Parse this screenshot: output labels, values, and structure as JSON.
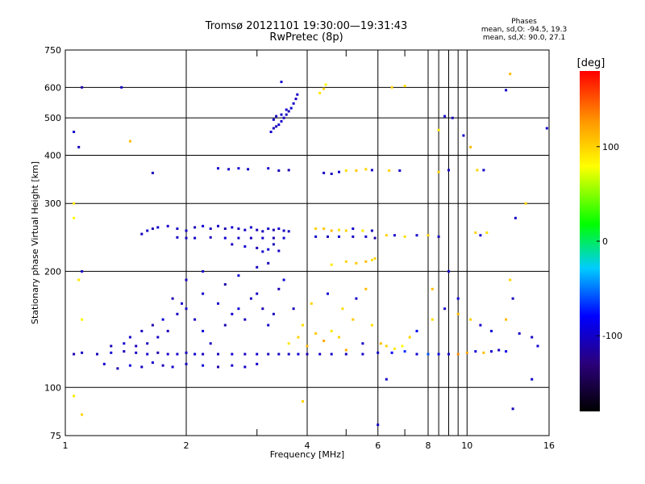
{
  "chart_data": {
    "type": "scatter",
    "title": "Tromsø 20121101 19:30:00—19:31:43",
    "subtitle": "RwPretec (8p)",
    "phases": {
      "heading": "Phases",
      "line1": "mean, sd,O:  -94.5, 19.3",
      "line2": "mean, sd,X:  90.0, 27.1"
    },
    "xlabel": "Frequency [MHz]",
    "ylabel": "Stationary phase Virtual Height [km]",
    "x_scale": "log",
    "y_scale": "log",
    "xlim": [
      1,
      16
    ],
    "ylim": [
      75,
      750
    ],
    "x_ticks": [
      1,
      2,
      4,
      6,
      8,
      10,
      16
    ],
    "x_tick_labels": [
      "1",
      "2",
      "4",
      "6",
      "8",
      "10",
      "16"
    ],
    "x_minor_ticks": [
      3,
      5,
      7,
      9
    ],
    "y_ticks": [
      75,
      100,
      200,
      300,
      400,
      500,
      600,
      750
    ],
    "y_tick_labels": [
      "75",
      "100",
      "200",
      "300",
      "400",
      "500",
      "600",
      "750"
    ],
    "grid": true,
    "colorbar": {
      "unit": "[deg]",
      "range": [
        -180,
        180
      ],
      "ticks": [
        100,
        0,
        -100
      ],
      "tick_labels": [
        "100",
        "0",
        "-100"
      ]
    },
    "points": [
      [
        1.05,
        122,
        -110
      ],
      [
        1.1,
        123,
        -100
      ],
      [
        1.2,
        122,
        -105
      ],
      [
        1.3,
        123,
        -95
      ],
      [
        1.4,
        124,
        -108
      ],
      [
        1.5,
        123,
        -102
      ],
      [
        1.6,
        122,
        -99
      ],
      [
        1.7,
        123,
        -110
      ],
      [
        1.8,
        122,
        -104
      ],
      [
        1.9,
        122,
        -100
      ],
      [
        2.0,
        123,
        -105
      ],
      [
        2.1,
        122,
        -96
      ],
      [
        2.2,
        122,
        -103
      ],
      [
        2.4,
        122,
        -107
      ],
      [
        2.6,
        122,
        -100
      ],
      [
        2.8,
        122,
        -104
      ],
      [
        3.0,
        122,
        -98
      ],
      [
        3.2,
        122,
        -106
      ],
      [
        3.4,
        122,
        -102
      ],
      [
        3.6,
        122,
        -100
      ],
      [
        3.8,
        122,
        -96
      ],
      [
        4.0,
        122,
        -108
      ],
      [
        4.3,
        122,
        -102
      ],
      [
        4.6,
        122,
        -99
      ],
      [
        5.0,
        122,
        -105
      ],
      [
        5.5,
        122,
        -101
      ],
      [
        6.0,
        123,
        -100
      ],
      [
        6.5,
        123,
        -80
      ],
      [
        7.0,
        124,
        -70
      ],
      [
        7.5,
        122,
        -95
      ],
      [
        8.0,
        122,
        -60
      ],
      [
        8.5,
        122,
        -90
      ],
      [
        9.0,
        122,
        -100
      ],
      [
        9.5,
        122,
        130
      ],
      [
        10.0,
        123,
        120
      ],
      [
        10.5,
        124,
        -95
      ],
      [
        11.0,
        123,
        110
      ],
      [
        11.5,
        124,
        -100
      ],
      [
        12.0,
        125,
        -105
      ],
      [
        12.5,
        124,
        -90
      ],
      [
        1.25,
        115,
        -100
      ],
      [
        1.35,
        112,
        -110
      ],
      [
        1.45,
        114,
        -95
      ],
      [
        1.55,
        113,
        -105
      ],
      [
        1.65,
        116,
        -100
      ],
      [
        1.75,
        114,
        -108
      ],
      [
        1.85,
        113,
        -99
      ],
      [
        2.0,
        115,
        -104
      ],
      [
        2.2,
        114,
        -96
      ],
      [
        2.4,
        113,
        -110
      ],
      [
        2.6,
        114,
        -102
      ],
      [
        2.8,
        113,
        -100
      ],
      [
        3.0,
        115,
        -98
      ],
      [
        1.6,
        130,
        -105
      ],
      [
        1.7,
        135,
        -100
      ],
      [
        1.8,
        140,
        -108
      ],
      [
        1.75,
        150,
        -95
      ],
      [
        1.65,
        145,
        -110
      ],
      [
        1.9,
        155,
        -102
      ],
      [
        2.0,
        160,
        -100
      ],
      [
        2.1,
        150,
        -105
      ],
      [
        2.2,
        140,
        -96
      ],
      [
        1.85,
        170,
        -110
      ],
      [
        1.95,
        165,
        -99
      ],
      [
        1.55,
        140,
        -104
      ],
      [
        1.45,
        135,
        -100
      ],
      [
        1.5,
        128,
        -105
      ],
      [
        2.3,
        130,
        -102
      ],
      [
        2.5,
        145,
        -108
      ],
      [
        2.6,
        155,
        -100
      ],
      [
        2.7,
        160,
        -95
      ],
      [
        2.8,
        150,
        -106
      ],
      [
        2.9,
        170,
        -104
      ],
      [
        3.0,
        175,
        -100
      ],
      [
        3.1,
        160,
        -110
      ],
      [
        3.2,
        145,
        -98
      ],
      [
        3.3,
        155,
        -105
      ],
      [
        2.4,
        165,
        -102
      ],
      [
        2.2,
        175,
        -100
      ],
      [
        3.5,
        190,
        -96
      ],
      [
        3.4,
        180,
        -108
      ],
      [
        1.4,
        130,
        -100
      ],
      [
        1.3,
        128,
        -105
      ],
      [
        2.0,
        190,
        -104
      ],
      [
        2.2,
        200,
        -100
      ],
      [
        2.5,
        185,
        -110
      ],
      [
        2.7,
        195,
        -96
      ],
      [
        3.0,
        205,
        -102
      ],
      [
        3.2,
        210,
        -105
      ],
      [
        3.1,
        225,
        -100
      ],
      [
        3.3,
        235,
        -108
      ],
      [
        3.6,
        130,
        90
      ],
      [
        3.8,
        135,
        100
      ],
      [
        4.0,
        128,
        110
      ],
      [
        3.9,
        145,
        95
      ],
      [
        4.2,
        138,
        105
      ],
      [
        4.4,
        132,
        120
      ],
      [
        4.6,
        140,
        90
      ],
      [
        4.8,
        135,
        100
      ],
      [
        5.0,
        125,
        115
      ],
      [
        5.2,
        150,
        105
      ],
      [
        5.5,
        130,
        -100
      ],
      [
        5.8,
        145,
        95
      ],
      [
        3.7,
        160,
        -105
      ],
      [
        4.1,
        165,
        100
      ],
      [
        4.5,
        175,
        -98
      ],
      [
        4.9,
        160,
        95
      ],
      [
        5.3,
        170,
        -100
      ],
      [
        5.6,
        180,
        110
      ],
      [
        6.1,
        130,
        110
      ],
      [
        6.3,
        128,
        100
      ],
      [
        6.6,
        126,
        90
      ],
      [
        6.9,
        128,
        80
      ],
      [
        7.2,
        135,
        100
      ],
      [
        7.5,
        140,
        -80
      ],
      [
        8.2,
        150,
        95
      ],
      [
        8.8,
        160,
        -100
      ],
      [
        9.5,
        155,
        110
      ],
      [
        10.2,
        150,
        100
      ],
      [
        10.8,
        145,
        -100
      ],
      [
        11.5,
        140,
        -95
      ],
      [
        12.5,
        150,
        110
      ],
      [
        13.5,
        138,
        -100
      ],
      [
        14.5,
        135,
        -105
      ],
      [
        15.0,
        128,
        -95
      ],
      [
        1.55,
        250,
        -105
      ],
      [
        1.6,
        255,
        -100
      ],
      [
        1.65,
        258,
        -110
      ],
      [
        1.7,
        260,
        -96
      ],
      [
        1.8,
        262,
        -102
      ],
      [
        1.9,
        258,
        -105
      ],
      [
        2.0,
        255,
        -100
      ],
      [
        2.1,
        260,
        -108
      ],
      [
        2.2,
        262,
        -96
      ],
      [
        2.3,
        258,
        -104
      ],
      [
        2.4,
        262,
        -100
      ],
      [
        2.5,
        258,
        -110
      ],
      [
        2.6,
        260,
        -98
      ],
      [
        2.7,
        258,
        -105
      ],
      [
        2.8,
        256,
        -102
      ],
      [
        2.9,
        260,
        -100
      ],
      [
        3.0,
        256,
        -106
      ],
      [
        3.1,
        254,
        -104
      ],
      [
        3.2,
        258,
        -100
      ],
      [
        3.3,
        256,
        -110
      ],
      [
        3.4,
        258,
        -98
      ],
      [
        3.5,
        255,
        -105
      ],
      [
        3.6,
        254,
        -102
      ],
      [
        1.9,
        245,
        -100
      ],
      [
        2.0,
        244,
        -105
      ],
      [
        2.1,
        244,
        -100
      ],
      [
        2.3,
        245,
        -108
      ],
      [
        2.5,
        244,
        -96
      ],
      [
        2.7,
        244,
        -102
      ],
      [
        2.9,
        244,
        -105
      ],
      [
        3.1,
        244,
        -100
      ],
      [
        3.3,
        244,
        -110
      ],
      [
        3.5,
        244,
        -98
      ],
      [
        2.6,
        235,
        -105
      ],
      [
        2.8,
        232,
        -100
      ],
      [
        3.0,
        230,
        -108
      ],
      [
        3.2,
        228,
        -96
      ],
      [
        3.4,
        226,
        -102
      ],
      [
        4.2,
        258,
        100
      ],
      [
        4.4,
        258,
        105
      ],
      [
        4.6,
        255,
        110
      ],
      [
        4.8,
        256,
        95
      ],
      [
        5.0,
        255,
        100
      ],
      [
        5.2,
        258,
        -100
      ],
      [
        5.5,
        255,
        90
      ],
      [
        5.8,
        255,
        -105
      ],
      [
        6.3,
        248,
        100
      ],
      [
        6.6,
        248,
        -100
      ],
      [
        7.0,
        246,
        95
      ],
      [
        7.5,
        248,
        -98
      ],
      [
        8.0,
        248,
        100
      ],
      [
        8.5,
        246,
        -105
      ],
      [
        10.5,
        252,
        100
      ],
      [
        10.8,
        248,
        -100
      ],
      [
        11.2,
        252,
        95
      ],
      [
        4.2,
        246,
        -100
      ],
      [
        4.5,
        246,
        -105
      ],
      [
        4.8,
        246,
        -98
      ],
      [
        5.2,
        246,
        -102
      ],
      [
        5.6,
        246,
        -100
      ],
      [
        5.9,
        244,
        -110
      ],
      [
        5.0,
        212,
        100
      ],
      [
        5.3,
        210,
        105
      ],
      [
        5.6,
        212,
        110
      ],
      [
        5.8,
        214,
        95
      ],
      [
        5.9,
        216,
        100
      ],
      [
        4.6,
        208,
        90
      ],
      [
        2.4,
        370,
        -100
      ],
      [
        2.55,
        368,
        -105
      ],
      [
        2.7,
        370,
        -98
      ],
      [
        2.85,
        368,
        -102
      ],
      [
        3.2,
        370,
        -100
      ],
      [
        3.4,
        365,
        -104
      ],
      [
        3.6,
        366,
        -108
      ],
      [
        4.4,
        360,
        -100
      ],
      [
        4.6,
        358,
        -105
      ],
      [
        4.8,
        362,
        -98
      ],
      [
        5.0,
        365,
        95
      ],
      [
        5.3,
        365,
        105
      ],
      [
        5.6,
        368,
        100
      ],
      [
        5.8,
        366,
        -100
      ],
      [
        6.4,
        365,
        100
      ],
      [
        6.8,
        365,
        -100
      ],
      [
        8.5,
        362,
        100
      ],
      [
        9.0,
        366,
        -100
      ],
      [
        10.6,
        366,
        100
      ],
      [
        11.0,
        366,
        -98
      ],
      [
        3.25,
        460,
        -100
      ],
      [
        3.3,
        470,
        -105
      ],
      [
        3.35,
        475,
        -110
      ],
      [
        3.4,
        480,
        -98
      ],
      [
        3.45,
        490,
        -102
      ],
      [
        3.5,
        500,
        -100
      ],
      [
        3.55,
        510,
        -105
      ],
      [
        3.6,
        520,
        -108
      ],
      [
        3.65,
        530,
        -96
      ],
      [
        3.7,
        545,
        -100
      ],
      [
        3.75,
        560,
        -104
      ],
      [
        3.78,
        575,
        -102
      ],
      [
        3.3,
        495,
        -100
      ],
      [
        3.35,
        505,
        -105
      ],
      [
        3.45,
        510,
        -98
      ],
      [
        3.55,
        525,
        -100
      ],
      [
        3.45,
        620,
        -100
      ],
      [
        4.3,
        580,
        90
      ],
      [
        4.4,
        595,
        100
      ],
      [
        4.45,
        610,
        80
      ],
      [
        6.5,
        600,
        100
      ],
      [
        7.0,
        605,
        95
      ],
      [
        12.8,
        650,
        110
      ],
      [
        1.05,
        460,
        -100
      ],
      [
        1.08,
        420,
        -105
      ],
      [
        1.1,
        600,
        -110
      ],
      [
        1.38,
        600,
        -100
      ],
      [
        1.65,
        360,
        -105
      ],
      [
        1.45,
        435,
        110
      ],
      [
        1.05,
        300,
        90
      ],
      [
        1.05,
        275,
        80
      ],
      [
        1.1,
        200,
        -100
      ],
      [
        1.08,
        190,
        90
      ],
      [
        1.1,
        150,
        80
      ],
      [
        1.05,
        95,
        90
      ],
      [
        1.1,
        85,
        100
      ],
      [
        3.9,
        92,
        100
      ],
      [
        6.0,
        80,
        -100
      ],
      [
        13.0,
        88,
        -105
      ],
      [
        6.3,
        105,
        -100
      ],
      [
        14.5,
        105,
        -98
      ],
      [
        8.8,
        505,
        -100
      ],
      [
        9.2,
        500,
        -105
      ],
      [
        8.5,
        465,
        90
      ],
      [
        9.8,
        450,
        -100
      ],
      [
        10.2,
        420,
        110
      ],
      [
        12.5,
        590,
        -100
      ],
      [
        15.8,
        470,
        -100
      ],
      [
        14.0,
        300,
        100
      ],
      [
        13.2,
        275,
        -100
      ],
      [
        13.0,
        170,
        -105
      ],
      [
        12.8,
        190,
        100
      ],
      [
        9.0,
        200,
        -100
      ],
      [
        8.2,
        180,
        110
      ],
      [
        9.5,
        170,
        -95
      ]
    ]
  }
}
